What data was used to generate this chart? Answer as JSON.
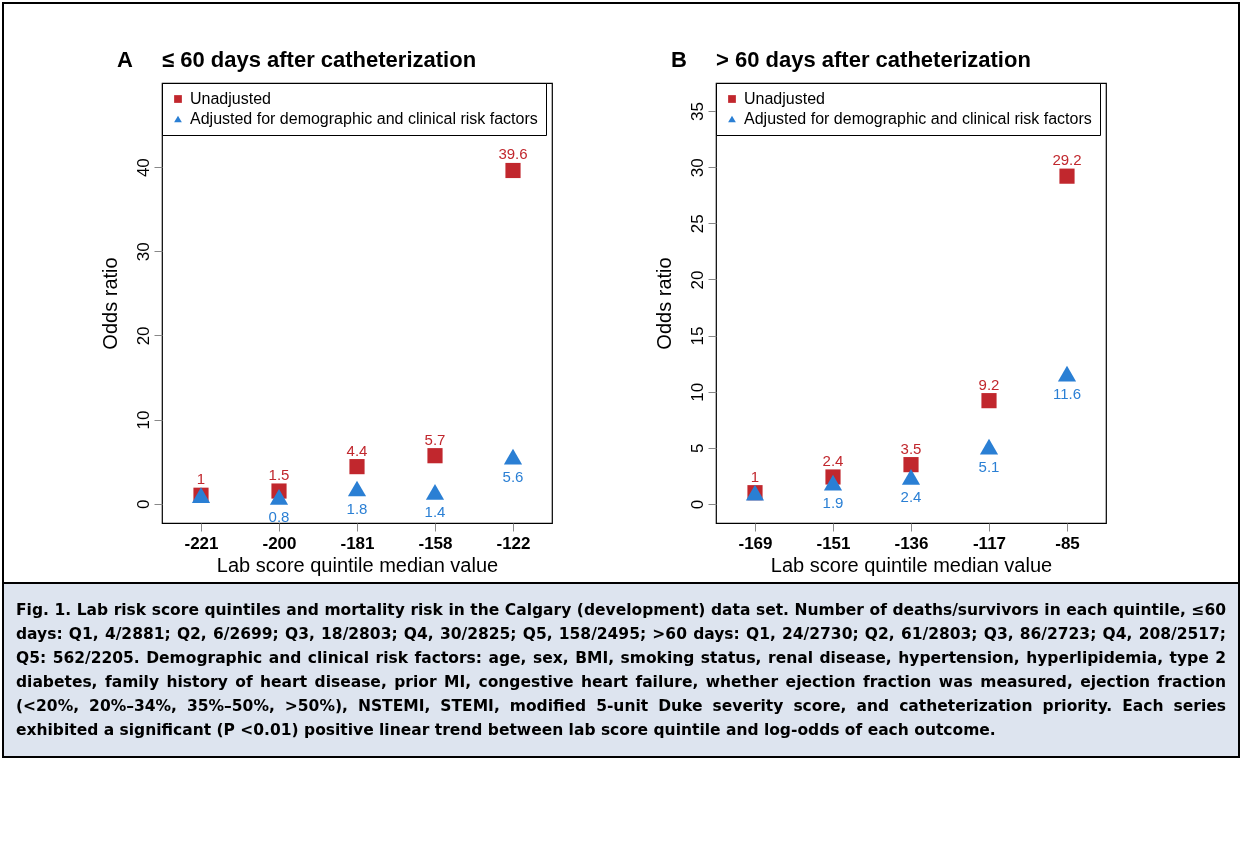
{
  "chart_data": [
    {
      "type": "scatter",
      "title": "≤ 60 days after catheterization",
      "xlabel": "Lab score quintile median value",
      "ylabel": "Odds ratio",
      "annotations": [
        "A"
      ],
      "categories": [
        "-221",
        "-200",
        "-181",
        "-158",
        "-122"
      ],
      "ylim": [
        -2.3,
        50
      ],
      "yticks": [
        0,
        10,
        20,
        30,
        40
      ],
      "grid": false,
      "legend": "top left",
      "series": [
        {
          "name": "Unadjusted",
          "color": "#c1272d",
          "marker": "square",
          "values": [
            1,
            1.5,
            4.4,
            5.7,
            39.6
          ],
          "value_labels": [
            "1",
            "1.5",
            "4.4",
            "5.7",
            "39.6"
          ]
        },
        {
          "name": "Adjusted for demographic and clinical risk factors",
          "color": "#2a7fd4",
          "marker": "triangle",
          "values": [
            1,
            0.8,
            1.8,
            1.4,
            5.6
          ],
          "value_labels": [
            null,
            "0.8",
            "1.8",
            "1.4",
            "5.6"
          ]
        }
      ]
    },
    {
      "type": "scatter",
      "title": "> 60 days after catheterization",
      "xlabel": "Lab score quintile median value",
      "ylabel": "Odds ratio",
      "annotations": [
        "B",
        "Fig. 1. Lab risk score quintiles and mortality risk in the Calgary (development) data set. Number of deaths/survivors in each quintile, ≤60 days: Q1, 4/2881; Q2, 6/2699; Q3, 18/2803; Q4, 30/2825; Q5, 158/2495; >60 days: Q1, 24/2730; Q2, 61/2803; Q3, 86/2723; Q4, 208/2517; Q5: 562/2205. Demographic and clinical risk factors: age, sex, BMI, smoking status, renal disease, hypertension, hyperlipidemia, type 2 diabetes, family history of heart disease, prior MI, congestive heart failure, whether ejection fraction was measured, ejection fraction (<20%, 20%–34%, 35%–50%, >50%), NSTEMI, STEMI, modified 5-unit Duke severity score, and catheterization priority. Each series exhibited a significant (P <0.01) positive linear trend between lab score quintile and log-odds of each outcome."
      ],
      "categories": [
        "-169",
        "-151",
        "-136",
        "-117",
        "-85"
      ],
      "ylim": [
        -1.7,
        37.5
      ],
      "yticks": [
        0,
        5,
        10,
        15,
        20,
        25,
        30,
        35
      ],
      "grid": false,
      "legend": "top left",
      "series": [
        {
          "name": "Unadjusted",
          "color": "#c1272d",
          "marker": "square",
          "values": [
            1,
            2.4,
            3.5,
            9.2,
            29.2
          ],
          "value_labels": [
            "1",
            "2.4",
            "3.5",
            "9.2",
            "29.2"
          ]
        },
        {
          "name": "Adjusted for demographic and clinical risk factors",
          "color": "#2a7fd4",
          "marker": "triangle",
          "values": [
            1,
            1.9,
            2.4,
            5.1,
            11.6
          ],
          "value_labels": [
            null,
            "1.9",
            "2.4",
            "5.1",
            "11.6"
          ]
        }
      ]
    }
  ]
}
